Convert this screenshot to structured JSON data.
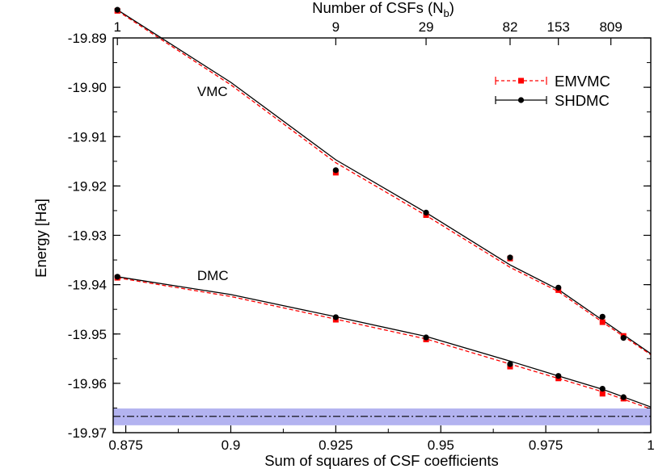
{
  "chart_data": {
    "type": "line",
    "xlabel": "Sum of squares of CSF coefficients",
    "ylabel": "Energy [Ha]",
    "top_xlabel": "Number of CSFs (N",
    "top_xlabel_sub": "b",
    "top_xlabel_close": ")",
    "xlim": [
      0.872,
      1.0
    ],
    "ylim": [
      -19.97,
      -19.89
    ],
    "x_ticks": [
      {
        "value": 0.875,
        "label": "0.875"
      },
      {
        "value": 0.9,
        "label": "0.9"
      },
      {
        "value": 0.925,
        "label": "0.925"
      },
      {
        "value": 0.95,
        "label": "0.95"
      },
      {
        "value": 0.975,
        "label": "0.975"
      },
      {
        "value": 1.0,
        "label": "1"
      }
    ],
    "y_ticks": [
      {
        "value": -19.89,
        "label": "-19.89"
      },
      {
        "value": -19.9,
        "label": "-19.90"
      },
      {
        "value": -19.91,
        "label": "-19.91"
      },
      {
        "value": -19.92,
        "label": "-19.92"
      },
      {
        "value": -19.93,
        "label": "-19.93"
      },
      {
        "value": -19.94,
        "label": "-19.94"
      },
      {
        "value": -19.95,
        "label": "-19.95"
      },
      {
        "value": -19.96,
        "label": "-19.96"
      },
      {
        "value": -19.97,
        "label": "-19.97"
      }
    ],
    "top_ticks": [
      {
        "value": 0.873,
        "label": "1"
      },
      {
        "value": 0.925,
        "label": "9"
      },
      {
        "value": 0.9465,
        "label": "29"
      },
      {
        "value": 0.9665,
        "label": "82"
      },
      {
        "value": 0.978,
        "label": "153"
      },
      {
        "value": 0.9905,
        "label": "809"
      }
    ],
    "annotations": [
      {
        "text": "VMC",
        "x": 0.892,
        "y": -19.9018
      },
      {
        "text": "DMC",
        "x": 0.892,
        "y": -19.9391
      }
    ],
    "reference": {
      "y": -19.9667,
      "band": [
        -19.9685,
        -19.9651
      ],
      "band_color": "#b3b3f0",
      "line_color": "#000000"
    },
    "series": [
      {
        "name": "EMVMC",
        "color": "#ff0000",
        "marker": "square",
        "line": "dashed",
        "groups": [
          {
            "x": [
              0.873,
              0.925,
              0.9465,
              0.9665,
              0.978,
              0.9885,
              0.9935
            ],
            "y": [
              -19.8845,
              -19.9173,
              -19.9259,
              -19.9347,
              -19.9411,
              -19.9476,
              -19.9504
            ]
          },
          {
            "x": [
              0.873,
              0.925,
              0.9465,
              0.9665,
              0.978,
              0.9885,
              0.9935
            ],
            "y": [
              -19.9386,
              -19.9471,
              -19.9511,
              -19.9566,
              -19.959,
              -19.9621,
              -19.9631
            ]
          }
        ]
      },
      {
        "name": "SHDMC",
        "color": "#000000",
        "marker": "circle",
        "line": "solid",
        "groups": [
          {
            "x": [
              0.873,
              0.925,
              0.9465,
              0.9665,
              0.978,
              0.9885,
              0.9935
            ],
            "y": [
              -19.8843,
              -19.9168,
              -19.9254,
              -19.9345,
              -19.9406,
              -19.9465,
              -19.9508
            ]
          },
          {
            "x": [
              0.873,
              0.925,
              0.9465,
              0.9665,
              0.978,
              0.9885,
              0.9935
            ],
            "y": [
              -19.9384,
              -19.9466,
              -19.9507,
              -19.9561,
              -19.9585,
              -19.9611,
              -19.9628
            ]
          }
        ]
      }
    ],
    "fit_lines": [
      {
        "color": "#000000",
        "dash": false,
        "x": [
          0.873,
          0.9,
          0.925,
          0.9465,
          0.9665,
          0.978,
          0.9885,
          1.0
        ],
        "y": [
          -19.8843,
          -19.899,
          -19.9147,
          -19.9254,
          -19.936,
          -19.941,
          -19.9472,
          -19.954
        ]
      },
      {
        "color": "#ff0000",
        "dash": true,
        "x": [
          0.873,
          0.9,
          0.925,
          0.9465,
          0.9665,
          0.978,
          0.9885,
          1.0
        ],
        "y": [
          -19.8845,
          -19.8995,
          -19.9153,
          -19.926,
          -19.9365,
          -19.9414,
          -19.9476,
          -19.9542
        ]
      },
      {
        "color": "#000000",
        "dash": false,
        "x": [
          0.873,
          0.9,
          0.925,
          0.9465,
          0.9665,
          0.978,
          0.9885,
          1.0
        ],
        "y": [
          -19.9384,
          -19.942,
          -19.9465,
          -19.9505,
          -19.9555,
          -19.9585,
          -19.9612,
          -19.9648
        ]
      },
      {
        "color": "#ff0000",
        "dash": true,
        "x": [
          0.873,
          0.9,
          0.925,
          0.9465,
          0.9665,
          0.978,
          0.9885,
          1.0
        ],
        "y": [
          -19.9386,
          -19.9424,
          -19.947,
          -19.951,
          -19.9561,
          -19.959,
          -19.9617,
          -19.9652
        ]
      }
    ],
    "legend": {
      "position": "top-right",
      "entries": [
        "EMVMC",
        "SHDMC"
      ]
    },
    "grid": false
  }
}
